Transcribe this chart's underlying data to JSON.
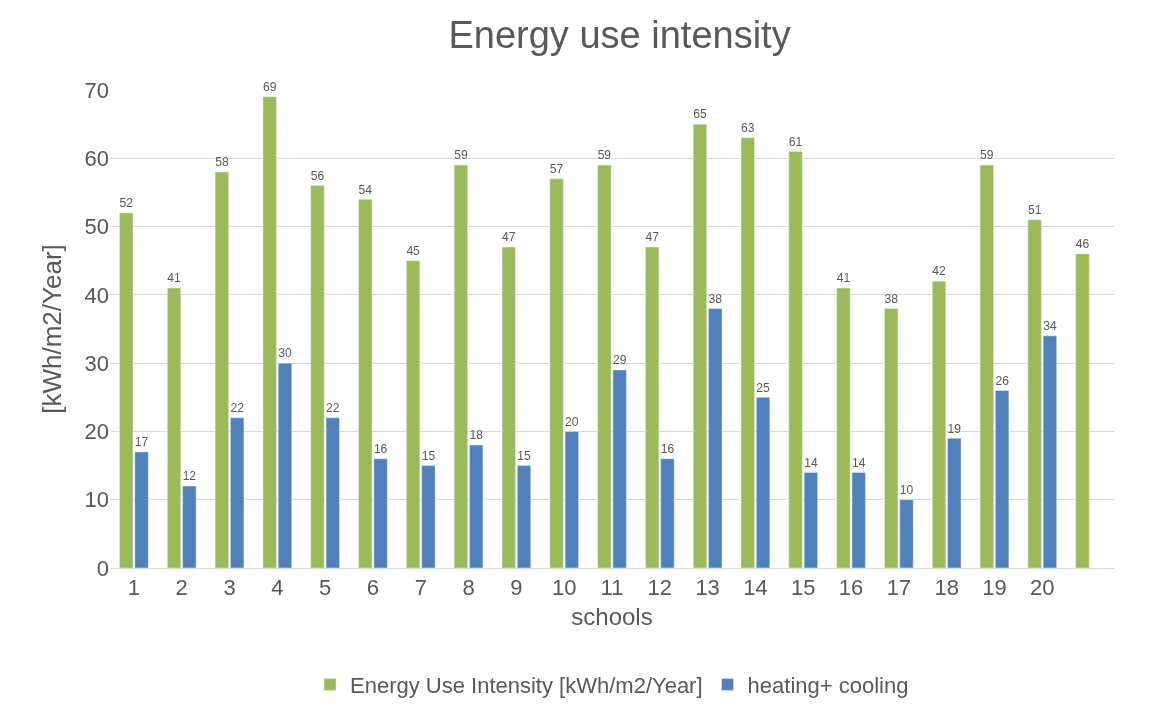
{
  "chart_data": {
    "type": "bar",
    "title": "Energy use intensity",
    "xlabel": "schools",
    "ylabel": "[kWh/m2/Year]",
    "categories": [
      "1",
      "2",
      "3",
      "4",
      "5",
      "6",
      "7",
      "8",
      "9",
      "10",
      "11",
      "12",
      "13",
      "14",
      "15",
      "16",
      "17",
      "18",
      "19",
      "20",
      null
    ],
    "series": [
      {
        "name": "Energy Use Intensity [kWh/m2/Year]",
        "color": "#9bbb59",
        "values": [
          52,
          41,
          58,
          69,
          56,
          54,
          45,
          59,
          47,
          57,
          59,
          47,
          65,
          63,
          61,
          41,
          38,
          42,
          59,
          51,
          46
        ]
      },
      {
        "name": "heating+ cooling",
        "color": "#4f81bd",
        "values": [
          17,
          12,
          22,
          30,
          22,
          16,
          15,
          18,
          15,
          20,
          29,
          16,
          38,
          25,
          14,
          14,
          10,
          19,
          26,
          34,
          null
        ]
      }
    ],
    "ylim": [
      0,
      70
    ],
    "yticks": [
      0,
      10,
      20,
      30,
      40,
      50,
      60,
      70
    ],
    "grid": "y",
    "legend": "bottom",
    "data_labels": true
  }
}
